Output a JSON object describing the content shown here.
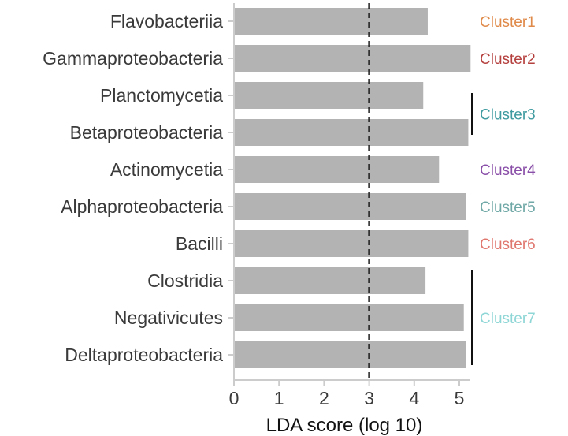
{
  "chart_data": {
    "type": "bar",
    "orientation": "horizontal",
    "categories": [
      "Flavobacteriia",
      "Gammaproteobacteria",
      "Planctomycetia",
      "Betaproteobacteria",
      "Actinomycetia",
      "Alphaproteobacteria",
      "Bacilli",
      "Clostridia",
      "Negativicutes",
      "Deltaproteobacteria"
    ],
    "values": [
      4.3,
      5.25,
      4.2,
      5.2,
      4.55,
      5.15,
      5.2,
      4.25,
      5.1,
      5.15
    ],
    "bar_color": "#b3b3b3",
    "xlabel": "LDA score (log 10)",
    "xticks": [
      "0",
      "1",
      "2",
      "3",
      "4",
      "5"
    ],
    "xlim": [
      0,
      5.3
    ],
    "threshold": 3,
    "grid": false,
    "clusters": [
      {
        "label": "Cluster1",
        "color": "#e08a4a",
        "rows": [
          0
        ]
      },
      {
        "label": "Cluster2",
        "color": "#b5413f",
        "rows": [
          1
        ]
      },
      {
        "label": "Cluster3",
        "color": "#3f9ba0",
        "rows": [
          2,
          3
        ]
      },
      {
        "label": "Cluster4",
        "color": "#8a4fa8",
        "rows": [
          4
        ]
      },
      {
        "label": "Cluster5",
        "color": "#6fa8a6",
        "rows": [
          5
        ]
      },
      {
        "label": "Cluster6",
        "color": "#e0776f",
        "rows": [
          6
        ]
      },
      {
        "label": "Cluster7",
        "color": "#8fd6d6",
        "rows": [
          7,
          8,
          9
        ]
      }
    ]
  }
}
